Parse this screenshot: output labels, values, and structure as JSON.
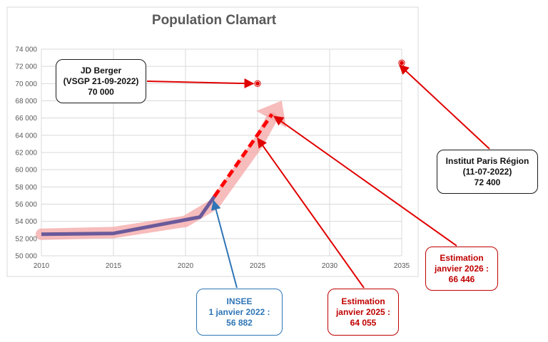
{
  "chart_data": {
    "type": "line",
    "title": "Population Clamart",
    "xlim": [
      2010,
      2035
    ],
    "ylim": [
      50000,
      74000
    ],
    "x_ticks": [
      "2010",
      "2015",
      "2020",
      "2025",
      "2030",
      "2035"
    ],
    "y_ticks": [
      "50 000",
      "52 000",
      "54 000",
      "56 000",
      "58 000",
      "60 000",
      "62 000",
      "64 000",
      "66 000",
      "68 000",
      "70 000",
      "72 000",
      "74 000"
    ],
    "grid": true,
    "series": [
      {
        "style": "solid",
        "color": "#6a5a9a",
        "points": [
          [
            2010,
            52500
          ],
          [
            2015,
            52600
          ],
          [
            2021,
            54500
          ],
          [
            2022,
            56882
          ]
        ]
      },
      {
        "style": "dashed",
        "color": "#ff0000",
        "points": [
          [
            2022,
            56882
          ],
          [
            2025,
            64055
          ],
          [
            2026,
            66446
          ]
        ]
      }
    ],
    "trend_band": {
      "color": "#f4a6a6",
      "points": [
        [
          2010,
          52500
        ],
        [
          2015,
          52700
        ],
        [
          2020,
          54000
        ],
        [
          2022,
          56000
        ],
        [
          2025,
          63000
        ],
        [
          2026,
          66000
        ]
      ]
    },
    "points": [
      {
        "x": 2025,
        "y": 70000,
        "color": "#e00000"
      },
      {
        "x": 2035,
        "y": 72400,
        "color": "#e00000"
      }
    ],
    "annotations": [
      {
        "id": "berger",
        "lines": [
          "JD Berger",
          "(VSGP 21-09-2022)",
          "70 000"
        ],
        "color": "#1a1a1a",
        "target": [
          2025,
          70000
        ]
      },
      {
        "id": "ipr",
        "lines": [
          "Institut Paris Région",
          "(11-07-2022)",
          "72 400"
        ],
        "color": "#1a1a1a",
        "target": [
          2035,
          72400
        ]
      },
      {
        "id": "insee",
        "lines": [
          "INSEE",
          "1 janvier 2022 :",
          "56 882"
        ],
        "color": "#2e75b6",
        "target": [
          2022,
          56882
        ]
      },
      {
        "id": "est2025",
        "lines": [
          "Estimation",
          "janvier 2025 :",
          "64 055"
        ],
        "color": "#c00000",
        "target": [
          2025,
          64055
        ]
      },
      {
        "id": "est2026",
        "lines": [
          "Estimation",
          "janvier 2026 :",
          "66 446"
        ],
        "color": "#c00000",
        "target": [
          2026,
          66446
        ]
      }
    ]
  }
}
